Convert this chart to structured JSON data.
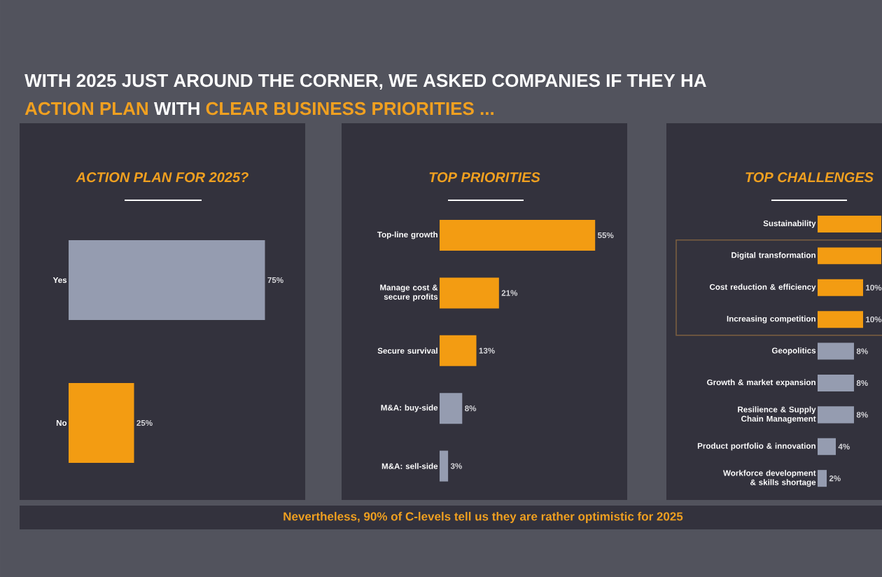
{
  "chart_data": [
    {
      "type": "other",
      "title": "WITH 2025 JUST AROUND THE CORNER, WE ASKED COMPANIES IF THEY HA",
      "annotations": [
        "ACTION PLAN",
        "WITH",
        "CLEAR BUSINESS PRIORITIES ...",
        "Nevertheless, 90% of C-levels tell us they are rather optimistic for 2025"
      ]
    },
    {
      "type": "bar",
      "orientation": "horizontal",
      "title": "ACTION PLAN FOR 2025?",
      "categories": [
        "Yes",
        "No"
      ],
      "values": [
        75,
        25
      ],
      "colors": [
        "#959cb0",
        "#f39c12"
      ],
      "value_labels": [
        "75%",
        "25%"
      ]
    },
    {
      "type": "bar",
      "orientation": "horizontal",
      "title": "TOP PRIORITIES",
      "categories": [
        "Top-line growth",
        "Manage cost & secure profits",
        "Secure survival",
        "M&A: buy-side",
        "M&A: sell-side"
      ],
      "values": [
        55,
        21,
        13,
        8,
        3
      ],
      "colors": [
        "#f39c12",
        "#f39c12",
        "#f39c12",
        "#959cb0",
        "#959cb0"
      ],
      "value_labels": [
        "55%",
        "21%",
        "13%",
        "8%",
        "3%"
      ]
    },
    {
      "type": "bar",
      "orientation": "horizontal",
      "title": "TOP CHALLENGES",
      "categories": [
        "Sustainability",
        "Digital transformation",
        "Cost reduction & efficiency",
        "Increasing competition",
        "Geopolitics",
        "Growth & market expansion",
        "Resilience & Supply Chain Management",
        "Product portfolio & innovation",
        "Workforce development & skills shortage"
      ],
      "values": [
        14,
        14,
        10,
        10,
        8,
        8,
        8,
        4,
        2
      ],
      "colors": [
        "#f39c12",
        "#f39c12",
        "#f39c12",
        "#f39c12",
        "#959cb0",
        "#959cb0",
        "#959cb0",
        "#959cb0",
        "#959cb0"
      ],
      "value_labels": [
        null,
        null,
        "10%",
        "10%",
        "8%",
        "8%",
        "8%",
        "4%",
        "2%"
      ]
    }
  ]
}
